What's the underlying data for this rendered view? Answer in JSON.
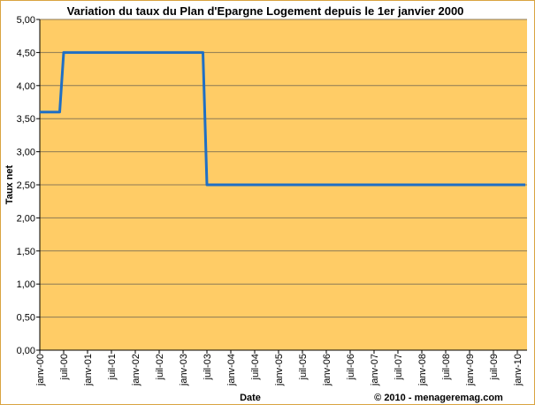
{
  "chart_data": {
    "type": "line",
    "title": "Variation du taux du Plan d'Epargne Logement depuis le 1er janvier 2000",
    "xlabel": "Date",
    "ylabel": "Taux net",
    "credit": "© 2010 - menageremag.com",
    "ylim": [
      0,
      5
    ],
    "yticks": [
      "0,00",
      "0,50",
      "1,00",
      "1,50",
      "2,00",
      "2,50",
      "3,00",
      "3,50",
      "4,00",
      "4,50",
      "5,00"
    ],
    "xlim": [
      "2000-01",
      "2010-03"
    ],
    "xticks": [
      "janv-00",
      "juil-00",
      "janv-01",
      "juil-01",
      "janv-02",
      "juil-02",
      "janv-03",
      "juil-03",
      "janv-04",
      "juil-04",
      "janv-05",
      "juil-05",
      "janv-06",
      "juil-06",
      "janv-07",
      "juil-07",
      "janv-08",
      "juil-08",
      "janv-09",
      "juil-09",
      "janv-10"
    ],
    "grid": true,
    "legend": "none",
    "colors": {
      "plot_background": "#FFCC66",
      "line": "#1F6FC5",
      "grid": "#8c7a55",
      "border": "#D9A441"
    },
    "series": [
      {
        "x": [
          "2000-01",
          "2000-06",
          "2000-07",
          "2003-06",
          "2003-07",
          "2010-03"
        ],
        "y": [
          3.6,
          3.6,
          4.5,
          4.5,
          2.5,
          2.5
        ]
      }
    ]
  }
}
